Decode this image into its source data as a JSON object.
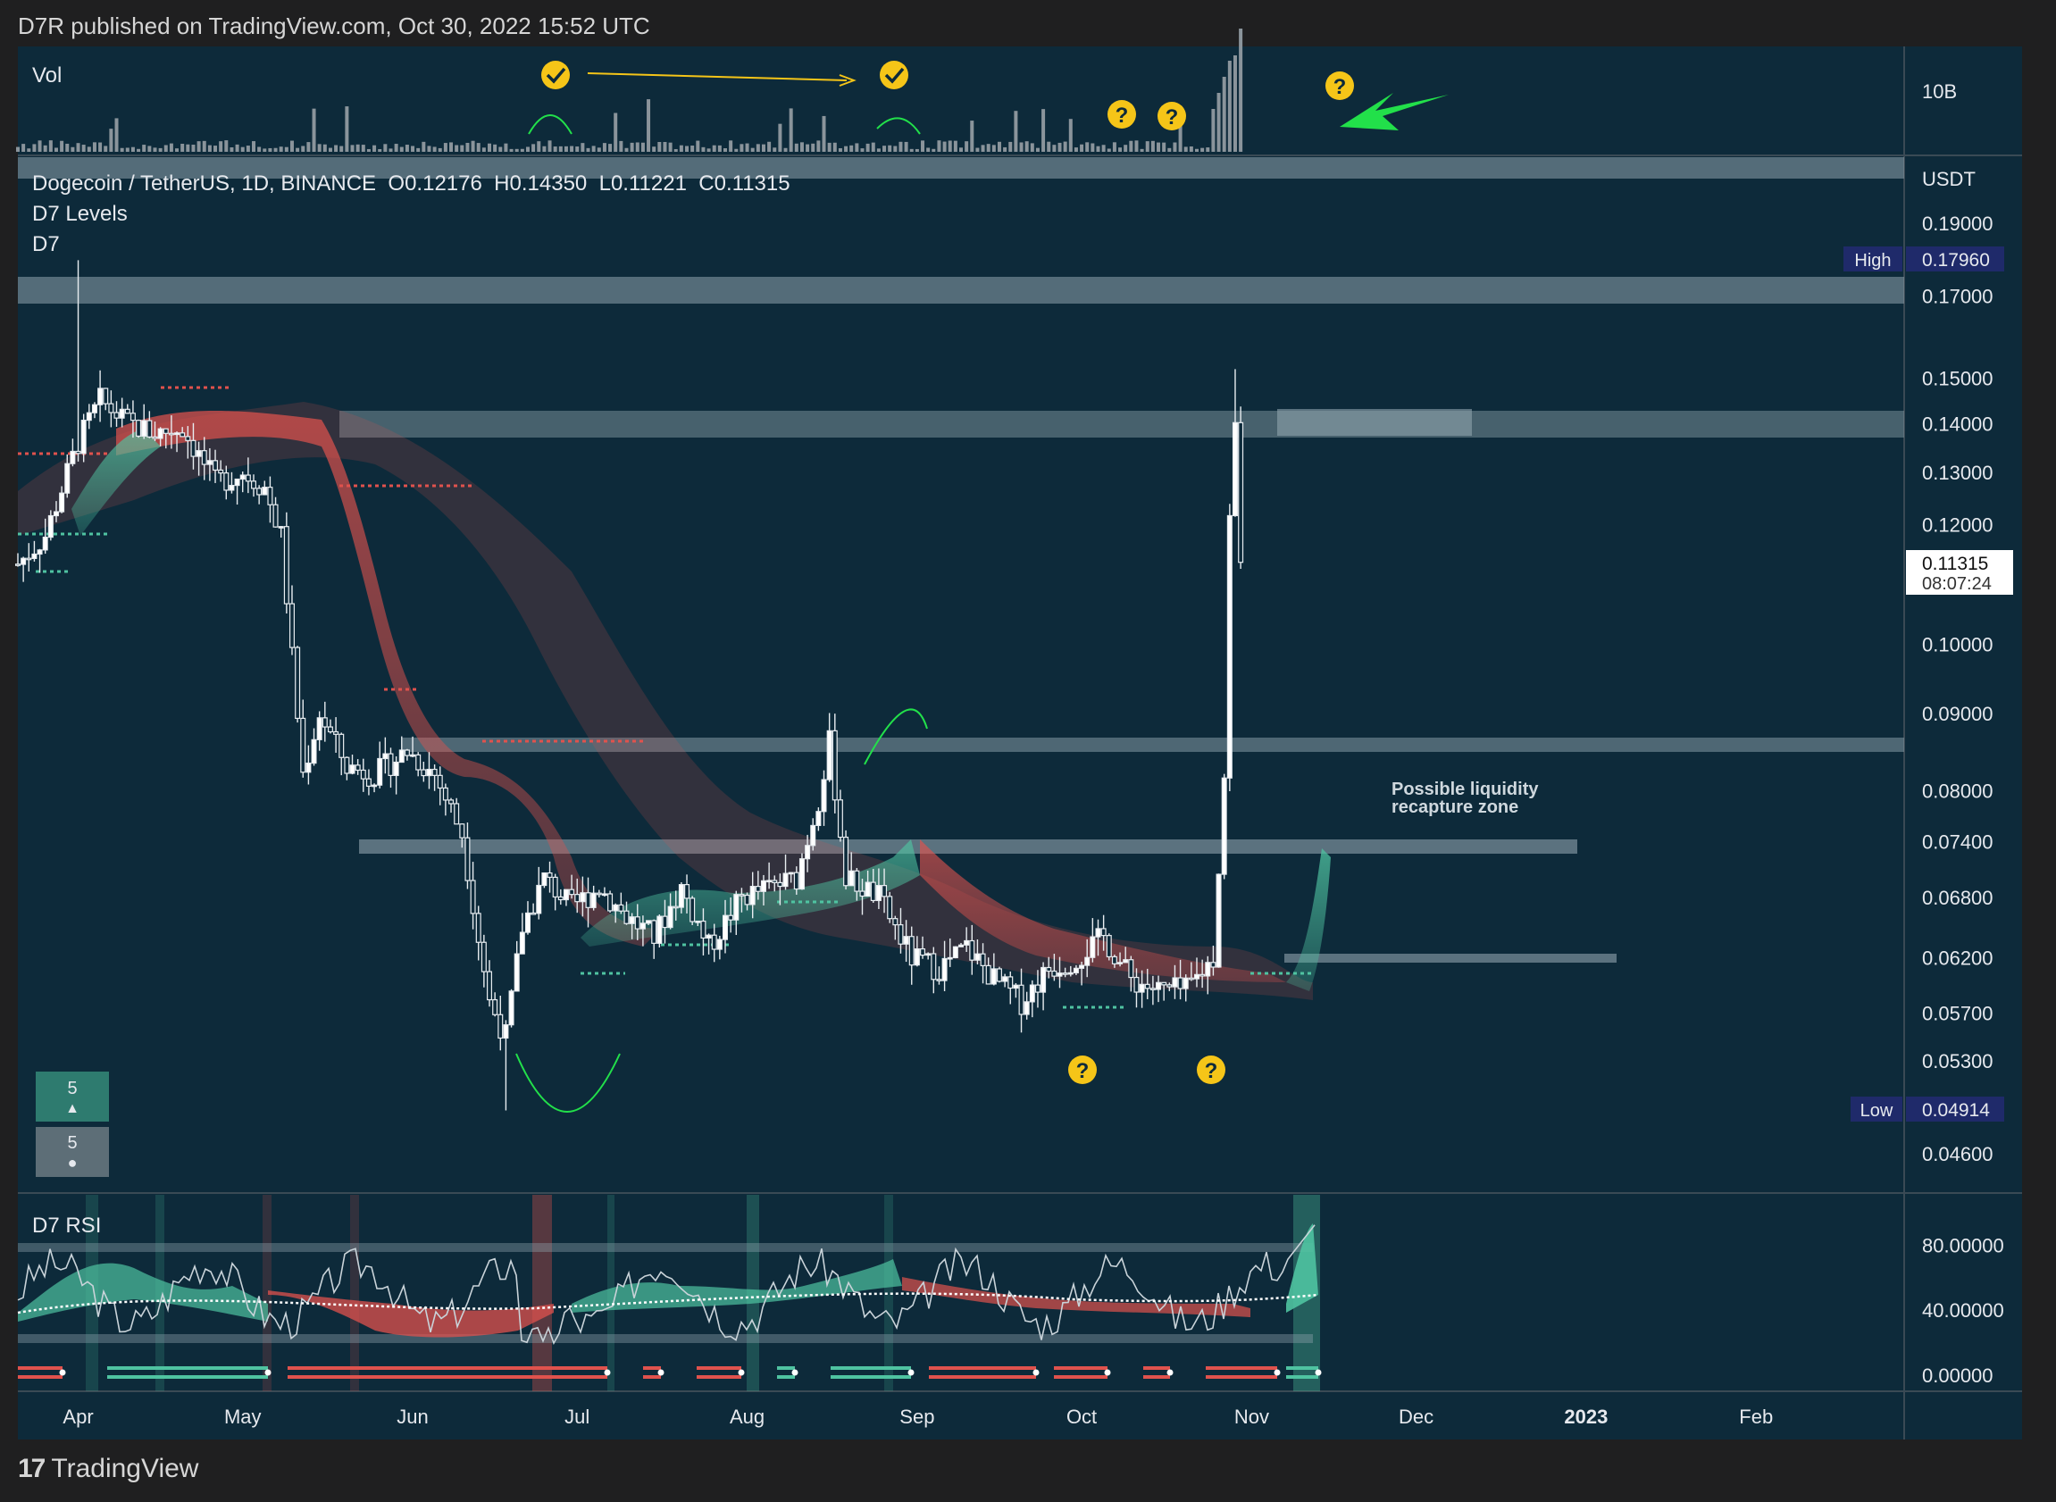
{
  "header": {
    "publish_line": "D7R published on TradingView.com, Oct 30, 2022 15:52 UTC"
  },
  "footer": {
    "brand": "TradingView"
  },
  "volume_pane": {
    "label": "Vol",
    "axis_label": "10B"
  },
  "price_pane": {
    "symbol_line": "Dogecoin / TetherUS, 1D, BINANCE",
    "ohlc": {
      "open": "O0.12176",
      "high": "H0.14350",
      "low": "L0.11221",
      "close": "C0.11315"
    },
    "indicators": [
      "D7 Levels",
      "D7"
    ],
    "currency": "USDT",
    "high_badge": {
      "label": "High",
      "value": "0.17960"
    },
    "low_badge": {
      "label": "Low",
      "value": "0.04914"
    },
    "last_price": {
      "value": "0.11315",
      "countdown": "08:07:24"
    },
    "annotation": [
      "Possible liquidity",
      "recapture zone"
    ],
    "counters": [
      {
        "value": "5",
        "glyph": "▲"
      },
      {
        "value": "5",
        "glyph": "●"
      }
    ]
  },
  "rsi_pane": {
    "label": "D7 RSI",
    "ticks": [
      "80.00000",
      "40.00000",
      "0.00000"
    ]
  },
  "colors": {
    "background": "#0d2a3a",
    "up": "#4fc3a1",
    "down": "#e0524d",
    "zone": "#8fa3ad",
    "marker": "#f5c518",
    "arrow": "#22e04a"
  },
  "chart_data": {
    "type": "candlestick",
    "title": "Dogecoin / TetherUS, 1D, BINANCE",
    "y_ticks": [
      "0.19000",
      "0.17000",
      "0.15000",
      "0.14000",
      "0.13000",
      "0.12000",
      "0.10000",
      "0.09000",
      "0.08000",
      "0.07400",
      "0.06800",
      "0.06200",
      "0.05700",
      "0.05300",
      "0.04600"
    ],
    "y_scale": "log",
    "x_ticks": [
      "Apr",
      "May",
      "Jun",
      "Jul",
      "Aug",
      "Sep",
      "Oct",
      "Nov",
      "Dec",
      "2023",
      "Feb"
    ],
    "x_range": [
      "2022-03-21",
      "2023-02-28"
    ],
    "key_prices": {
      "high": 0.1796,
      "low": 0.04914,
      "last": 0.11315,
      "zones": [
        0.172,
        0.1395,
        0.0865,
        0.0735,
        0.0618
      ]
    },
    "close_path": [
      [
        "2022-03-21",
        0.113
      ],
      [
        "2022-03-26",
        0.118
      ],
      [
        "2022-04-01",
        0.136
      ],
      [
        "2022-04-05",
        0.145
      ],
      [
        "2022-04-10",
        0.14
      ],
      [
        "2022-04-15",
        0.138
      ],
      [
        "2022-04-20",
        0.139
      ],
      [
        "2022-04-26",
        0.128
      ],
      [
        "2022-05-01",
        0.13
      ],
      [
        "2022-05-05",
        0.127
      ],
      [
        "2022-05-08",
        0.118
      ],
      [
        "2022-05-10",
        0.098
      ],
      [
        "2022-05-12",
        0.082
      ],
      [
        "2022-05-15",
        0.09
      ],
      [
        "2022-05-20",
        0.083
      ],
      [
        "2022-05-25",
        0.082
      ],
      [
        "2022-05-31",
        0.085
      ],
      [
        "2022-06-05",
        0.082
      ],
      [
        "2022-06-10",
        0.075
      ],
      [
        "2022-06-13",
        0.064
      ],
      [
        "2022-06-15",
        0.058
      ],
      [
        "2022-06-18",
        0.055
      ],
      [
        "2022-06-21",
        0.065
      ],
      [
        "2022-06-25",
        0.07
      ],
      [
        "2022-06-30",
        0.067
      ],
      [
        "2022-07-05",
        0.069
      ],
      [
        "2022-07-10",
        0.066
      ],
      [
        "2022-07-15",
        0.064
      ],
      [
        "2022-07-20",
        0.069
      ],
      [
        "2022-07-25",
        0.063
      ],
      [
        "2022-07-31",
        0.068
      ],
      [
        "2022-08-05",
        0.069
      ],
      [
        "2022-08-10",
        0.07
      ],
      [
        "2022-08-14",
        0.079
      ],
      [
        "2022-08-16",
        0.086
      ],
      [
        "2022-08-19",
        0.07
      ],
      [
        "2022-08-25",
        0.068
      ],
      [
        "2022-08-31",
        0.062
      ],
      [
        "2022-09-05",
        0.061
      ],
      [
        "2022-09-10",
        0.063
      ],
      [
        "2022-09-15",
        0.06
      ],
      [
        "2022-09-20",
        0.058
      ],
      [
        "2022-09-25",
        0.061
      ],
      [
        "2022-09-30",
        0.062
      ],
      [
        "2022-10-05",
        0.064
      ],
      [
        "2022-10-10",
        0.06
      ],
      [
        "2022-10-15",
        0.059
      ],
      [
        "2022-10-20",
        0.059
      ],
      [
        "2022-10-25",
        0.062
      ],
      [
        "2022-10-27",
        0.082
      ],
      [
        "2022-10-28",
        0.121
      ],
      [
        "2022-10-29",
        0.139
      ],
      [
        "2022-10-30",
        0.113
      ]
    ],
    "rsi_levels": [
      80,
      40,
      0
    ]
  }
}
